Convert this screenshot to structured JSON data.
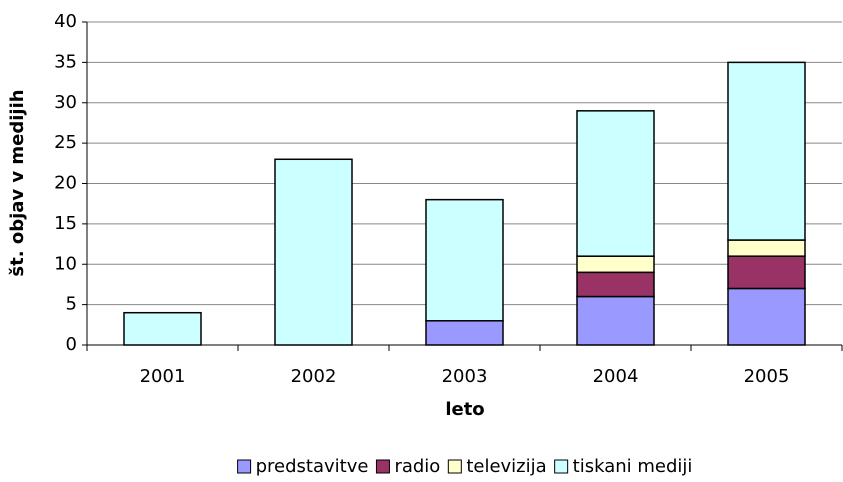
{
  "chart_data": {
    "type": "stacked_bar",
    "xlabel": "leto",
    "ylabel": "št. objav v medijih",
    "categories": [
      "2001",
      "2002",
      "2003",
      "2004",
      "2005"
    ],
    "series": [
      {
        "name": "predstavitve",
        "color": "#9999ff",
        "values": [
          0,
          0,
          3,
          6,
          7
        ]
      },
      {
        "name": "radio",
        "color": "#993366",
        "values": [
          0,
          0,
          0,
          3,
          4
        ]
      },
      {
        "name": "televizija",
        "color": "#ffffcc",
        "values": [
          0,
          0,
          0,
          2,
          2
        ]
      },
      {
        "name": "tiskani mediji",
        "color": "#ccffff",
        "values": [
          4,
          23,
          15,
          18,
          22
        ]
      }
    ],
    "ylim": [
      0,
      40
    ],
    "yticks": [
      0,
      5,
      10,
      15,
      20,
      25,
      30,
      35,
      40
    ],
    "grid": true,
    "legend": "bottom"
  }
}
